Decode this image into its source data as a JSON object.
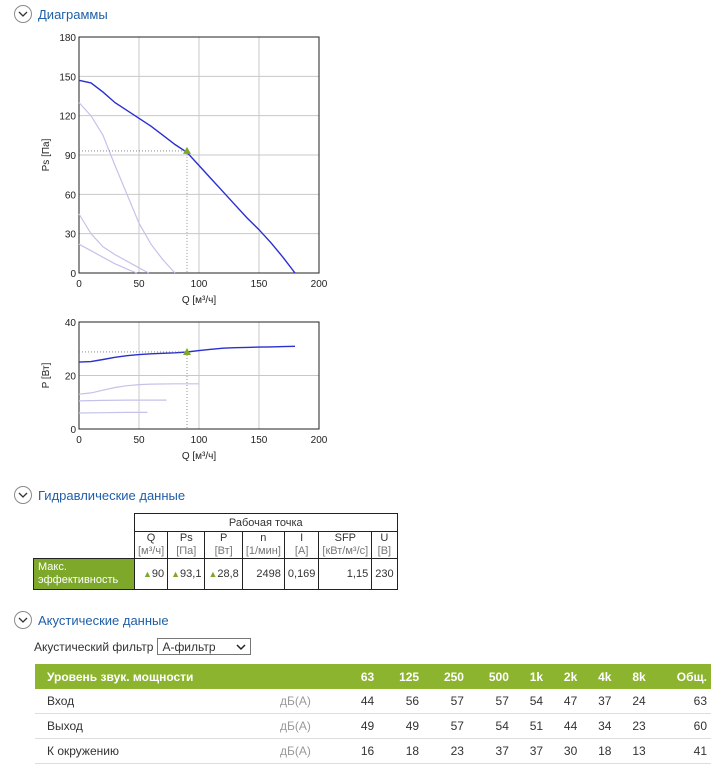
{
  "sections": {
    "diagrams": "Диаграммы",
    "hydraulic": "Гидравлические данные",
    "acoustic": "Акустические данные"
  },
  "chart_data": [
    {
      "type": "line",
      "xlabel": "Q [м³/ч]",
      "ylabel": "Ps [Па]",
      "xlim": [
        0,
        200
      ],
      "ylim": [
        0,
        180
      ],
      "xticks": [
        0,
        50,
        100,
        150,
        200
      ],
      "yticks": [
        0,
        30,
        60,
        90,
        120,
        150,
        180
      ],
      "grid": true,
      "series": [
        {
          "color": "#2a2fd0",
          "points": [
            [
              0,
              147
            ],
            [
              10,
              145
            ],
            [
              20,
              138
            ],
            [
              30,
              130
            ],
            [
              40,
              124
            ],
            [
              50,
              118
            ],
            [
              60,
              112
            ],
            [
              70,
              105
            ],
            [
              80,
              98
            ],
            [
              90,
              92
            ],
            [
              100,
              82
            ],
            [
              110,
              72
            ],
            [
              120,
              62
            ],
            [
              130,
              52
            ],
            [
              140,
              42
            ],
            [
              150,
              33
            ],
            [
              160,
              23
            ],
            [
              170,
              12
            ],
            [
              180,
              0
            ]
          ]
        },
        {
          "color": "#c5c2ea",
          "points": [
            [
              0,
              130
            ],
            [
              10,
              120
            ],
            [
              20,
              105
            ],
            [
              30,
              82
            ],
            [
              40,
              60
            ],
            [
              50,
              38
            ],
            [
              60,
              22
            ],
            [
              70,
              10
            ],
            [
              80,
              0
            ]
          ]
        },
        {
          "color": "#c5c2ea",
          "points": [
            [
              0,
              45
            ],
            [
              10,
              30
            ],
            [
              20,
              20
            ],
            [
              30,
              14
            ],
            [
              40,
              9
            ],
            [
              50,
              4
            ],
            [
              58,
              0
            ]
          ]
        },
        {
          "color": "#c5c2ea",
          "points": [
            [
              0,
              22
            ],
            [
              10,
              17
            ],
            [
              20,
              12
            ],
            [
              30,
              7
            ],
            [
              40,
              3
            ],
            [
              48,
              0
            ]
          ]
        }
      ],
      "operating_point": {
        "x": 90,
        "y": 93.1
      }
    },
    {
      "type": "line",
      "xlabel": "Q [м³/ч]",
      "ylabel": "P [Вт]",
      "xlim": [
        0,
        200
      ],
      "ylim": [
        0,
        40
      ],
      "xticks": [
        0,
        50,
        100,
        150,
        200
      ],
      "yticks": [
        0,
        20,
        40
      ],
      "grid": true,
      "series": [
        {
          "color": "#2a2fd0",
          "points": [
            [
              0,
              25
            ],
            [
              10,
              25.2
            ],
            [
              20,
              26
            ],
            [
              30,
              26.8
            ],
            [
              40,
              27.4
            ],
            [
              50,
              27.8
            ],
            [
              60,
              28.1
            ],
            [
              70,
              28.3
            ],
            [
              80,
              28.5
            ],
            [
              90,
              28.8
            ],
            [
              100,
              29.3
            ],
            [
              110,
              29.8
            ],
            [
              120,
              30.2
            ],
            [
              130,
              30.4
            ],
            [
              140,
              30.5
            ],
            [
              150,
              30.6
            ],
            [
              160,
              30.7
            ],
            [
              170,
              30.8
            ],
            [
              180,
              30.9
            ]
          ]
        },
        {
          "color": "#c5c2ea",
          "points": [
            [
              0,
              13
            ],
            [
              10,
              13.5
            ],
            [
              20,
              14.5
            ],
            [
              30,
              15.5
            ],
            [
              40,
              16.2
            ],
            [
              50,
              16.6
            ],
            [
              60,
              16.8
            ],
            [
              80,
              16.9
            ],
            [
              100,
              16.9
            ]
          ]
        },
        {
          "color": "#c5c2ea",
          "points": [
            [
              0,
              10.5
            ],
            [
              20,
              10.7
            ],
            [
              40,
              10.8
            ],
            [
              60,
              10.8
            ],
            [
              73,
              10.8
            ]
          ]
        },
        {
          "color": "#c5c2ea",
          "points": [
            [
              0,
              6
            ],
            [
              20,
              6.1
            ],
            [
              40,
              6.2
            ],
            [
              57,
              6.2
            ]
          ]
        }
      ],
      "operating_point": {
        "x": 90,
        "y": 28.8
      }
    }
  ],
  "hydraulic": {
    "group_header": "Рабочая точка",
    "columns": [
      {
        "name": "Q",
        "unit": "[м³/ч]",
        "value": "90",
        "marker": true
      },
      {
        "name": "Ps",
        "unit": "[Па]",
        "value": "93,1",
        "marker": true
      },
      {
        "name": "P",
        "unit": "[Вт]",
        "value": "28,8",
        "marker": true
      },
      {
        "name": "n",
        "unit": "[1/мин]",
        "value": "2498",
        "marker": false
      },
      {
        "name": "I",
        "unit": "[A]",
        "value": "0,169",
        "marker": false
      },
      {
        "name": "SFP",
        "unit": "[кВт/м³/с]",
        "value": "1,15",
        "marker": false
      },
      {
        "name": "U",
        "unit": "[В]",
        "value": "230",
        "marker": false
      }
    ],
    "row_label": "Макс. эффективность",
    "colors": {
      "accent": "#7da82a"
    }
  },
  "acoustic": {
    "filter_label": "Акустический фильтр",
    "filter_value": "A-фильтр",
    "header": "Уровень звук. мощности",
    "bands": [
      "63",
      "125",
      "250",
      "500",
      "1k",
      "2k",
      "4k",
      "8k",
      "Общ."
    ],
    "rows": [
      {
        "label": "Вход",
        "unit": "дБ(A)",
        "values": [
          "44",
          "56",
          "57",
          "57",
          "54",
          "47",
          "37",
          "24",
          "63"
        ]
      },
      {
        "label": "Выход",
        "unit": "дБ(A)",
        "values": [
          "49",
          "49",
          "57",
          "54",
          "51",
          "44",
          "34",
          "23",
          "60"
        ]
      },
      {
        "label": "К окружению",
        "unit": "дБ(A)",
        "values": [
          "16",
          "18",
          "23",
          "37",
          "37",
          "30",
          "18",
          "13",
          "41"
        ]
      }
    ],
    "colors": {
      "header_bg": "#8cb42f"
    }
  }
}
